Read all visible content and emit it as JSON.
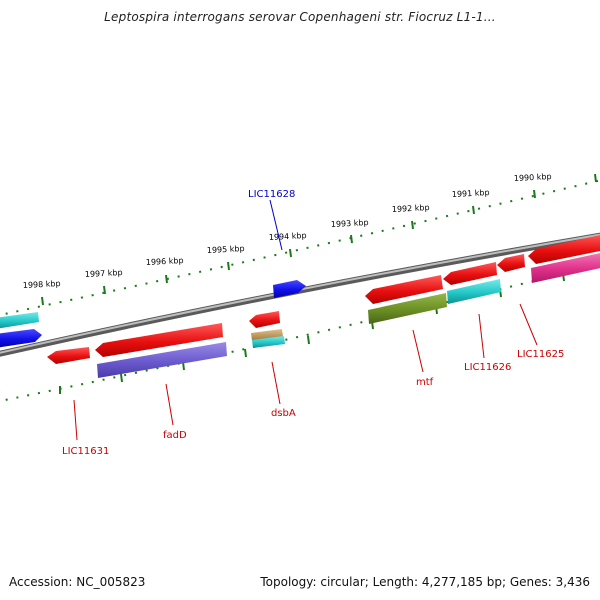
{
  "header": {
    "title": "Leptospira interrogans serovar Copenhageni str. Fiocruz L1-1..."
  },
  "footer": {
    "accession": "Accession: NC_005823",
    "topology": "Topology: circular; Length: 4,277,185 bp; Genes: 3,436"
  },
  "scale_labels": [
    "1998 kbp",
    "1997 kbp",
    "1996 kbp",
    "1995 kbp",
    "1994 kbp",
    "1993 kbp",
    "1992 kbp",
    "1991 kbp",
    "1990 kbp"
  ],
  "gene_labels": [
    "LIC11628",
    "LIC11631",
    "fadD",
    "dsbA",
    "mtf",
    "LIC11626",
    "LIC11625"
  ],
  "colors": {
    "backbone": "#888888",
    "scale": "#1a7a1a",
    "label_red": "#cc0000",
    "label_blue": "#0000cc",
    "red": "#ee1111",
    "blue": "#1111ee",
    "cyan": "#22cccc",
    "slate": "#6a5acd",
    "olive": "#6b8e23",
    "pink": "#e0308a",
    "tan": "#c8a060"
  }
}
